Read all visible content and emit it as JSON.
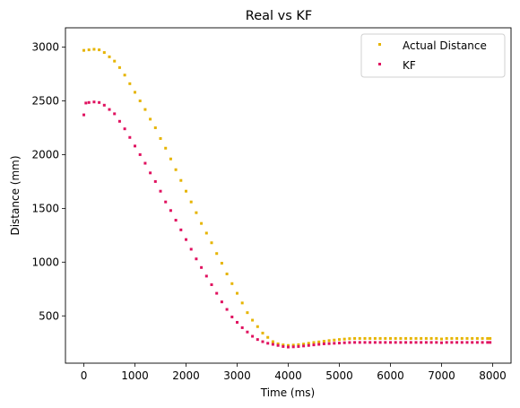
{
  "chart_data": {
    "type": "scatter",
    "title": "Real vs KF",
    "xlabel": "Time (ms)",
    "ylabel": "Distance (mm)",
    "xlim": [
      -360,
      8360
    ],
    "ylim": [
      60,
      3180
    ],
    "xticks": [
      0,
      1000,
      2000,
      3000,
      4000,
      5000,
      6000,
      7000,
      8000
    ],
    "yticks": [
      500,
      1000,
      1500,
      2000,
      2500,
      3000
    ],
    "xtick_labels": [
      "0",
      "1000",
      "2000",
      "3000",
      "4000",
      "5000",
      "6000",
      "7000",
      "8000"
    ],
    "ytick_labels": [
      "500",
      "1000",
      "1500",
      "2000",
      "2500",
      "3000"
    ],
    "grid": false,
    "legend_position": "top-right",
    "series": [
      {
        "name": "Actual Distance",
        "color": "#e6b400",
        "points": [
          [
            0,
            2970
          ],
          [
            100,
            2975
          ],
          [
            200,
            2980
          ],
          [
            300,
            2975
          ],
          [
            400,
            2950
          ],
          [
            500,
            2910
          ],
          [
            600,
            2870
          ],
          [
            700,
            2810
          ],
          [
            800,
            2740
          ],
          [
            900,
            2660
          ],
          [
            1000,
            2580
          ],
          [
            1100,
            2500
          ],
          [
            1200,
            2420
          ],
          [
            1300,
            2330
          ],
          [
            1400,
            2250
          ],
          [
            1500,
            2150
          ],
          [
            1600,
            2060
          ],
          [
            1700,
            1960
          ],
          [
            1800,
            1860
          ],
          [
            1900,
            1760
          ],
          [
            2000,
            1660
          ],
          [
            2100,
            1560
          ],
          [
            2200,
            1460
          ],
          [
            2300,
            1360
          ],
          [
            2400,
            1270
          ],
          [
            2500,
            1180
          ],
          [
            2600,
            1080
          ],
          [
            2700,
            990
          ],
          [
            2800,
            890
          ],
          [
            2900,
            800
          ],
          [
            3000,
            710
          ],
          [
            3100,
            620
          ],
          [
            3200,
            530
          ],
          [
            3300,
            460
          ],
          [
            3400,
            400
          ],
          [
            3500,
            340
          ],
          [
            3600,
            300
          ],
          [
            3700,
            260
          ],
          [
            3800,
            240
          ],
          [
            3900,
            230
          ],
          [
            4000,
            225
          ],
          [
            4100,
            228
          ],
          [
            4200,
            232
          ],
          [
            4300,
            238
          ],
          [
            4400,
            245
          ],
          [
            4500,
            252
          ],
          [
            4600,
            258
          ],
          [
            4700,
            264
          ],
          [
            4800,
            270
          ],
          [
            4900,
            275
          ],
          [
            5000,
            280
          ],
          [
            5100,
            284
          ],
          [
            5200,
            288
          ],
          [
            5300,
            290
          ],
          [
            5400,
            290
          ],
          [
            5500,
            290
          ],
          [
            5600,
            290
          ],
          [
            5700,
            290
          ],
          [
            5800,
            290
          ],
          [
            5900,
            290
          ],
          [
            6000,
            290
          ],
          [
            6100,
            290
          ],
          [
            6200,
            290
          ],
          [
            6300,
            290
          ],
          [
            6400,
            290
          ],
          [
            6500,
            290
          ],
          [
            6600,
            290
          ],
          [
            6700,
            290
          ],
          [
            6800,
            290
          ],
          [
            6900,
            290
          ],
          [
            7000,
            285
          ],
          [
            7100,
            290
          ],
          [
            7200,
            290
          ],
          [
            7300,
            290
          ],
          [
            7400,
            290
          ],
          [
            7500,
            290
          ],
          [
            7600,
            290
          ],
          [
            7700,
            290
          ],
          [
            7800,
            290
          ],
          [
            7900,
            290
          ],
          [
            7950,
            290
          ]
        ]
      },
      {
        "name": "KF",
        "color": "#e0115f",
        "points": [
          [
            0,
            2370
          ],
          [
            40,
            2480
          ],
          [
            100,
            2485
          ],
          [
            200,
            2490
          ],
          [
            300,
            2485
          ],
          [
            400,
            2460
          ],
          [
            500,
            2420
          ],
          [
            600,
            2380
          ],
          [
            700,
            2310
          ],
          [
            800,
            2240
          ],
          [
            900,
            2160
          ],
          [
            1000,
            2080
          ],
          [
            1100,
            2000
          ],
          [
            1200,
            1920
          ],
          [
            1300,
            1830
          ],
          [
            1400,
            1750
          ],
          [
            1500,
            1660
          ],
          [
            1600,
            1560
          ],
          [
            1700,
            1480
          ],
          [
            1800,
            1390
          ],
          [
            1900,
            1300
          ],
          [
            2000,
            1210
          ],
          [
            2100,
            1120
          ],
          [
            2200,
            1030
          ],
          [
            2300,
            950
          ],
          [
            2400,
            870
          ],
          [
            2500,
            790
          ],
          [
            2600,
            710
          ],
          [
            2700,
            630
          ],
          [
            2800,
            560
          ],
          [
            2900,
            490
          ],
          [
            3000,
            440
          ],
          [
            3100,
            390
          ],
          [
            3200,
            350
          ],
          [
            3300,
            310
          ],
          [
            3400,
            280
          ],
          [
            3500,
            260
          ],
          [
            3600,
            245
          ],
          [
            3700,
            235
          ],
          [
            3800,
            225
          ],
          [
            3900,
            215
          ],
          [
            4000,
            210
          ],
          [
            4100,
            212
          ],
          [
            4200,
            215
          ],
          [
            4300,
            220
          ],
          [
            4400,
            225
          ],
          [
            4500,
            230
          ],
          [
            4600,
            235
          ],
          [
            4700,
            240
          ],
          [
            4800,
            242
          ],
          [
            4900,
            245
          ],
          [
            5000,
            247
          ],
          [
            5100,
            250
          ],
          [
            5200,
            252
          ],
          [
            5300,
            253
          ],
          [
            5400,
            253
          ],
          [
            5500,
            253
          ],
          [
            5600,
            253
          ],
          [
            5700,
            253
          ],
          [
            5800,
            253
          ],
          [
            5900,
            253
          ],
          [
            6000,
            253
          ],
          [
            6100,
            253
          ],
          [
            6200,
            253
          ],
          [
            6300,
            253
          ],
          [
            6400,
            253
          ],
          [
            6500,
            253
          ],
          [
            6600,
            253
          ],
          [
            6700,
            253
          ],
          [
            6800,
            253
          ],
          [
            6900,
            253
          ],
          [
            7000,
            250
          ],
          [
            7100,
            253
          ],
          [
            7200,
            253
          ],
          [
            7300,
            253
          ],
          [
            7400,
            253
          ],
          [
            7500,
            253
          ],
          [
            7600,
            253
          ],
          [
            7700,
            253
          ],
          [
            7800,
            253
          ],
          [
            7900,
            253
          ],
          [
            7950,
            253
          ]
        ]
      }
    ]
  }
}
